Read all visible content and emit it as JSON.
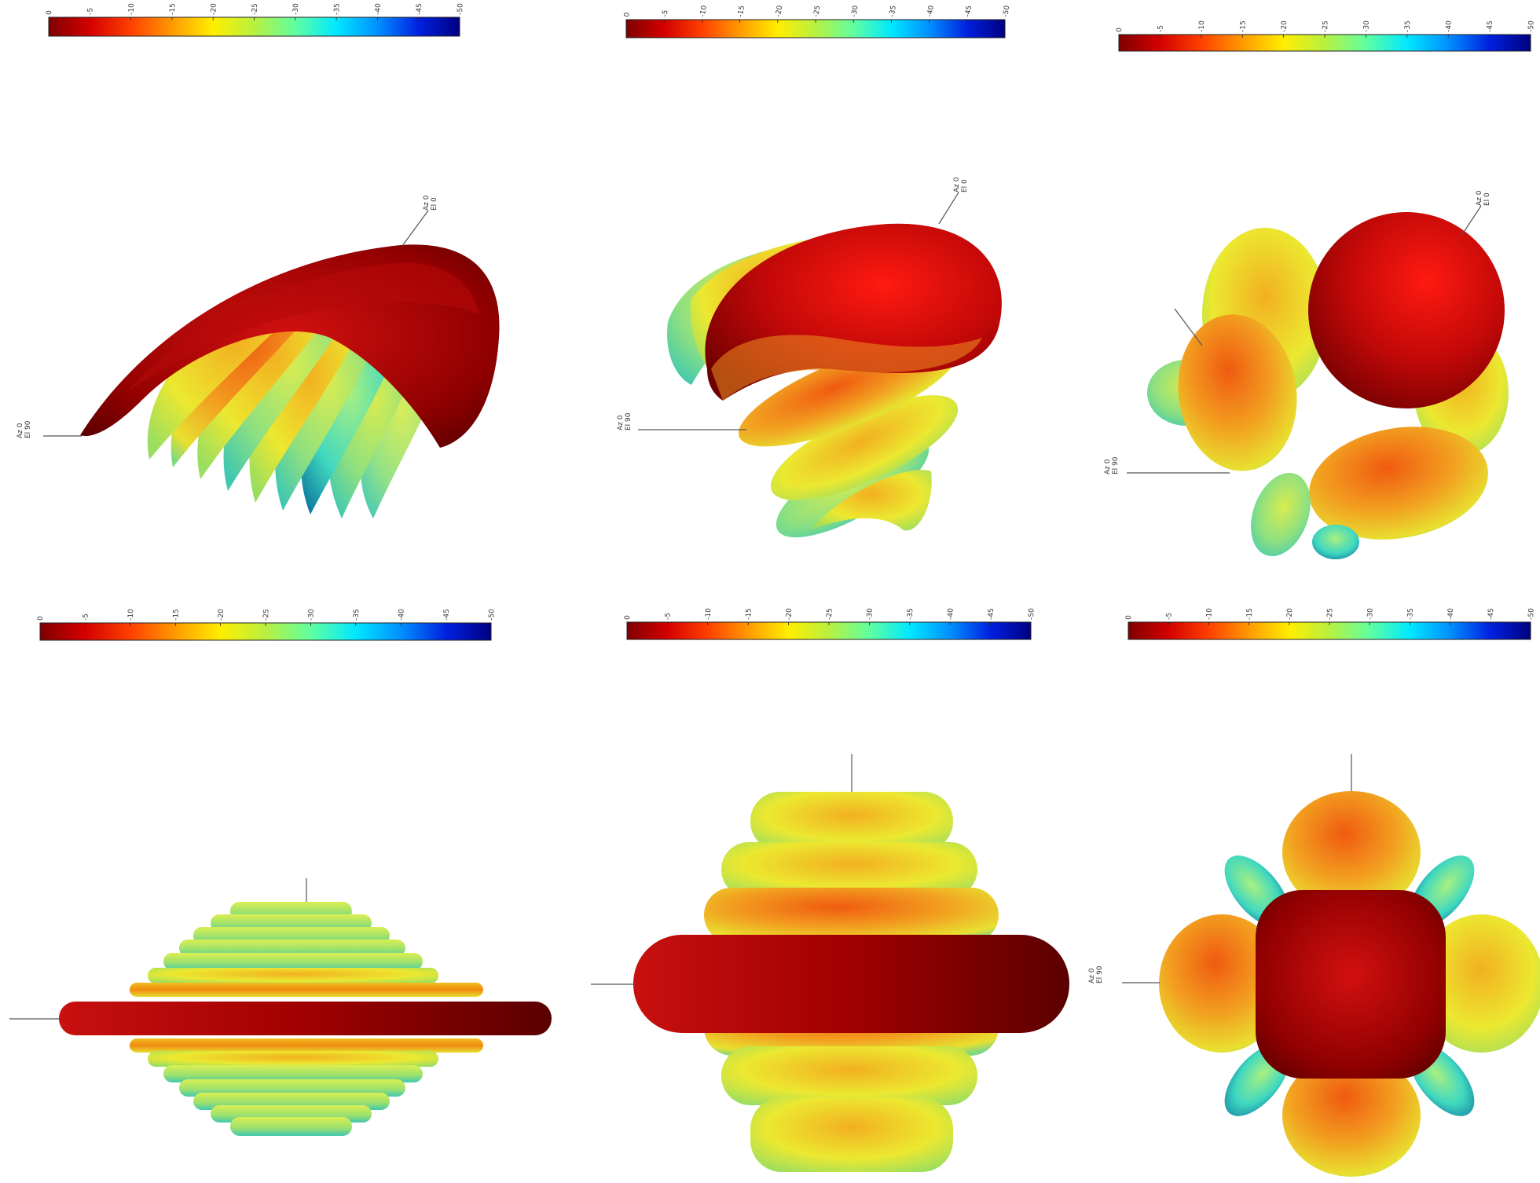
{
  "colormap": {
    "stops": [
      "#7f0000",
      "#d40000",
      "#ff4000",
      "#ff9a00",
      "#ffee00",
      "#b8f040",
      "#60ffa0",
      "#00e8ff",
      "#0090ff",
      "#0020e0",
      "#000080"
    ],
    "ticks": [
      "0",
      "-5",
      "-10",
      "-15",
      "-20",
      "-25",
      "-30",
      "-35",
      "-40",
      "-45",
      "-50"
    ]
  },
  "colors": {
    "mainlobe": "#8a0000",
    "red": "#d01010",
    "orange": "#f07a10",
    "yellow": "#e8e020",
    "green": "#90e070",
    "cyan": "#30c8d0",
    "blue": "#104090"
  },
  "panels": [
    {
      "id": "top-left",
      "markers": [
        {
          "line1": "Az 0",
          "line2": "El 90"
        },
        {
          "line1": "Az 0",
          "line2": "El 0"
        }
      ]
    },
    {
      "id": "top-middle",
      "markers": [
        {
          "line1": "Az 0",
          "line2": "El 90"
        },
        {
          "line1": "Az 0",
          "line2": "El 0"
        }
      ]
    },
    {
      "id": "top-right",
      "markers": [
        {
          "line1": "Az 0",
          "line2": "El 90"
        },
        {
          "line1": "Az 0",
          "line2": "El 0"
        }
      ]
    },
    {
      "id": "bottom-left",
      "markers": []
    },
    {
      "id": "bottom-middle",
      "markers": []
    },
    {
      "id": "bottom-right",
      "markers": [
        {
          "line1": "Az 0",
          "line2": "El 90"
        }
      ]
    }
  ]
}
